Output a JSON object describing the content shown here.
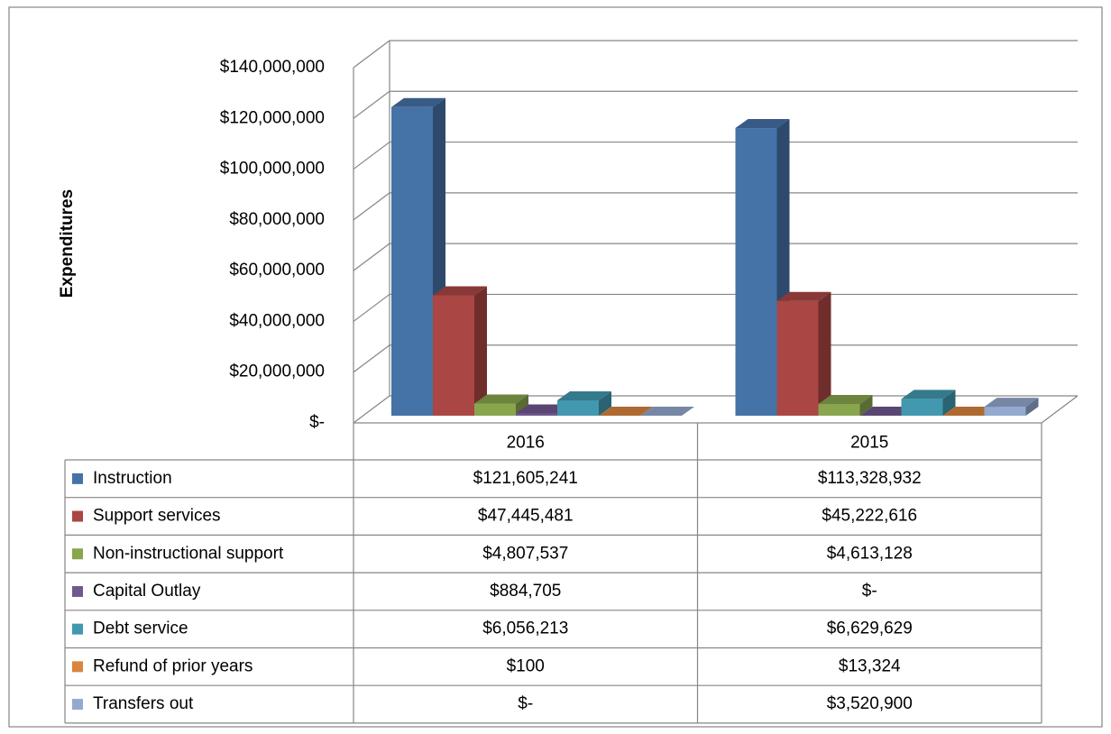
{
  "chart_data": {
    "type": "bar3d",
    "y_label": "Expenditures",
    "categories": [
      "2016",
      "2015"
    ],
    "series": [
      {
        "name": "Instruction",
        "color": "#4572a7",
        "values": [
          121605241,
          113328932
        ],
        "value_labels": [
          "$121,605,241",
          "$113,328,932"
        ]
      },
      {
        "name": "Support services",
        "color": "#aa4643",
        "values": [
          47445481,
          45222616
        ],
        "value_labels": [
          "$47,445,481",
          "$45,222,616"
        ]
      },
      {
        "name": "Non-instructional support",
        "color": "#89a54e",
        "values": [
          4807537,
          4613128
        ],
        "value_labels": [
          "$4,807,537",
          "$4,613,128"
        ]
      },
      {
        "name": "Capital Outlay",
        "color": "#71588f",
        "values": [
          884705,
          0
        ],
        "value_labels": [
          "$884,705",
          "$-"
        ]
      },
      {
        "name": "Debt service",
        "color": "#4198af",
        "values": [
          6056213,
          6629629
        ],
        "value_labels": [
          "$6,056,213",
          "$6,629,629"
        ]
      },
      {
        "name": "Refund of prior years",
        "color": "#db843d",
        "values": [
          100,
          13324
        ],
        "value_labels": [
          "$100",
          "$13,324"
        ]
      },
      {
        "name": "Transfers out",
        "color": "#93a9cf",
        "values": [
          0,
          3520900
        ],
        "value_labels": [
          "$-",
          "$3,520,900"
        ]
      }
    ],
    "ylim": [
      0,
      140000000
    ],
    "yticks": [
      {
        "value": 0,
        "label": "$-"
      },
      {
        "value": 20000000,
        "label": "$20,000,000"
      },
      {
        "value": 40000000,
        "label": "$40,000,000"
      },
      {
        "value": 60000000,
        "label": "$60,000,000"
      },
      {
        "value": 80000000,
        "label": "$80,000,000"
      },
      {
        "value": 100000000,
        "label": "$100,000,000"
      },
      {
        "value": 120000000,
        "label": "$120,000,000"
      },
      {
        "value": 140000000,
        "label": "$140,000,000"
      }
    ],
    "grid": true
  }
}
